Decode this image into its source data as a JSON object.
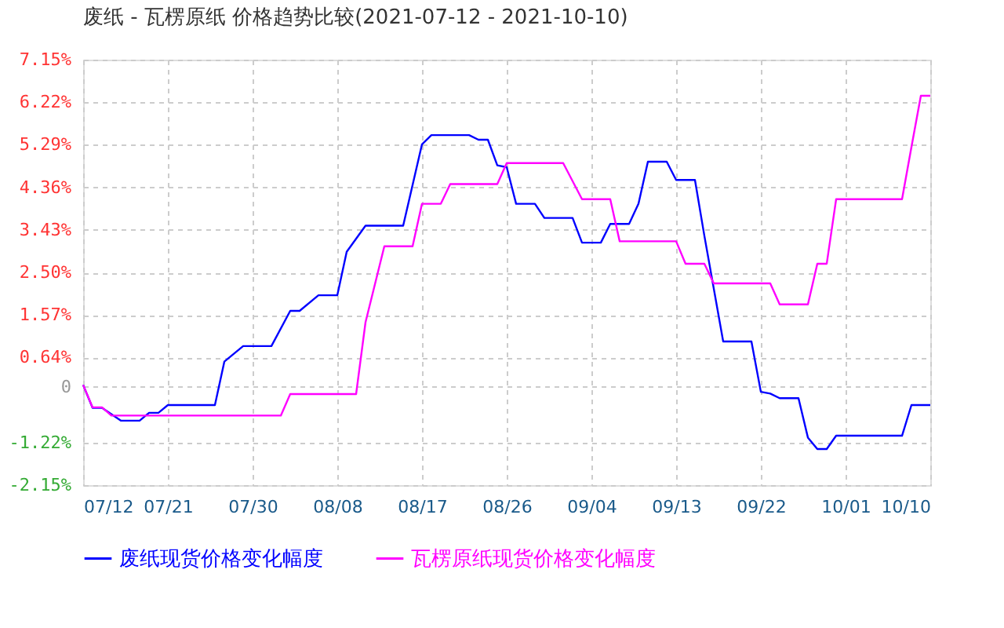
{
  "chart_data": {
    "type": "line",
    "title": "废纸 - 瓦楞原纸 价格趋势比较(2021-07-12 - 2021-10-10)",
    "xlim": [
      "2021-07-12",
      "2021-10-10"
    ],
    "xticks": [
      {
        "value": "2021-07-12",
        "label": "07/12"
      },
      {
        "value": "2021-07-21",
        "label": "07/21"
      },
      {
        "value": "2021-07-30",
        "label": "07/30"
      },
      {
        "value": "2021-08-08",
        "label": "08/08"
      },
      {
        "value": "2021-08-17",
        "label": "08/17"
      },
      {
        "value": "2021-08-26",
        "label": "08/26"
      },
      {
        "value": "2021-09-04",
        "label": "09/04"
      },
      {
        "value": "2021-09-13",
        "label": "09/13"
      },
      {
        "value": "2021-09-22",
        "label": "09/22"
      },
      {
        "value": "2021-10-01",
        "label": "10/01"
      },
      {
        "value": "2021-10-10",
        "label": "10/10"
      }
    ],
    "ylim": [
      -2.15,
      7.15
    ],
    "yticks": [
      {
        "value": -2.15,
        "label": "-2.15%"
      },
      {
        "value": -1.22,
        "label": "-1.22%"
      },
      0,
      {
        "value": 0.64,
        "label": "0.64%"
      },
      {
        "value": 1.57,
        "label": "1.57%"
      },
      {
        "value": 2.5,
        "label": "2.50%"
      },
      {
        "value": 3.43,
        "label": "3.43%"
      },
      {
        "value": 4.36,
        "label": "4.36%"
      },
      {
        "value": 5.29,
        "label": "5.29%"
      },
      {
        "value": 6.22,
        "label": "6.22%"
      },
      {
        "value": 7.15,
        "label": "7.15%"
      }
    ],
    "grid": true,
    "legend": "bottom",
    "marker": "none",
    "line_style": "solid",
    "series": [
      {
        "name": "废纸现货价格变化幅度",
        "color": "#0000ff",
        "x": [
          "2021-07-12",
          "2021-07-13",
          "2021-07-14",
          "2021-07-16",
          "2021-07-18",
          "2021-07-19",
          "2021-07-20",
          "2021-07-21",
          "2021-07-26",
          "2021-07-27",
          "2021-07-29",
          "2021-08-01",
          "2021-08-03",
          "2021-08-04",
          "2021-08-06",
          "2021-08-08",
          "2021-08-09",
          "2021-08-11",
          "2021-08-15",
          "2021-08-17",
          "2021-08-18",
          "2021-08-22",
          "2021-08-23",
          "2021-08-24",
          "2021-08-25",
          "2021-08-26",
          "2021-08-27",
          "2021-08-29",
          "2021-08-30",
          "2021-09-02",
          "2021-09-03",
          "2021-09-05",
          "2021-09-06",
          "2021-09-08",
          "2021-09-09",
          "2021-09-10",
          "2021-09-12",
          "2021-09-13",
          "2021-09-15",
          "2021-09-16",
          "2021-09-18",
          "2021-09-21",
          "2021-09-22",
          "2021-09-23",
          "2021-09-24",
          "2021-09-26",
          "2021-09-27",
          "2021-09-28",
          "2021-09-29",
          "2021-09-30",
          "2021-10-07",
          "2021-10-08",
          "2021-10-10"
        ],
        "values": [
          0.04,
          -0.46,
          -0.46,
          -0.74,
          -0.74,
          -0.57,
          -0.57,
          -0.4,
          -0.4,
          0.55,
          0.89,
          0.89,
          1.66,
          1.66,
          2.0,
          2.0,
          2.95,
          3.52,
          3.52,
          5.3,
          5.5,
          5.5,
          5.4,
          5.4,
          4.84,
          4.8,
          4.0,
          4.0,
          3.69,
          3.69,
          3.15,
          3.15,
          3.56,
          3.56,
          4.0,
          4.92,
          4.92,
          4.52,
          4.52,
          3.3,
          0.99,
          0.99,
          -0.11,
          -0.15,
          -0.25,
          -0.25,
          -1.11,
          -1.36,
          -1.36,
          -1.07,
          -1.07,
          -0.4,
          -0.4
        ]
      },
      {
        "name": "瓦楞原纸现货价格变化幅度",
        "color": "#ff00ff",
        "x": [
          "2021-07-12",
          "2021-07-13",
          "2021-07-14",
          "2021-07-15",
          "2021-08-02",
          "2021-08-03",
          "2021-08-10",
          "2021-08-11",
          "2021-08-13",
          "2021-08-16",
          "2021-08-17",
          "2021-08-19",
          "2021-08-20",
          "2021-08-25",
          "2021-08-26",
          "2021-09-01",
          "2021-09-03",
          "2021-09-06",
          "2021-09-07",
          "2021-09-13",
          "2021-09-14",
          "2021-09-16",
          "2021-09-17",
          "2021-09-23",
          "2021-09-24",
          "2021-09-27",
          "2021-09-28",
          "2021-09-29",
          "2021-09-30",
          "2021-10-07",
          "2021-10-08",
          "2021-10-09",
          "2021-10-10"
        ],
        "values": [
          0.04,
          -0.45,
          -0.45,
          -0.63,
          -0.63,
          -0.16,
          -0.16,
          1.41,
          3.07,
          3.07,
          4.0,
          4.0,
          4.43,
          4.43,
          4.89,
          4.89,
          4.1,
          4.1,
          3.18,
          3.18,
          2.69,
          2.69,
          2.26,
          2.26,
          1.8,
          1.8,
          2.69,
          2.69,
          4.1,
          4.1,
          5.24,
          6.36,
          6.36
        ]
      }
    ]
  }
}
